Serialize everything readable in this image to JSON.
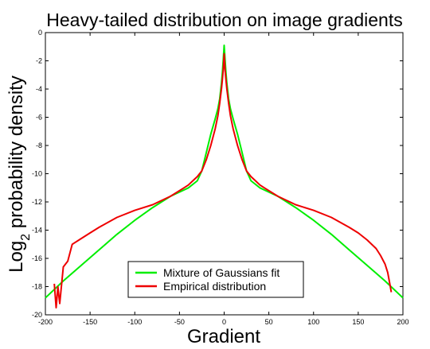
{
  "chart_data": {
    "type": "line",
    "title": "Heavy-tailed distribution on image gradients",
    "xlabel": "Gradient",
    "ylabel_main": "Log",
    "ylabel_sub": "2",
    "ylabel_rest": " probability density",
    "xlim": [
      -200,
      200
    ],
    "ylim": [
      -20,
      0
    ],
    "xticks": [
      -200,
      -150,
      -100,
      -50,
      0,
      50,
      100,
      150,
      200
    ],
    "yticks": [
      0,
      -2,
      -4,
      -6,
      -8,
      -10,
      -12,
      -14,
      -16,
      -18,
      -20
    ],
    "grid": false,
    "legend_position": "bottom-center",
    "series": [
      {
        "name": "Mixture of Gaussians fit",
        "color": "#00ee00",
        "x": [
          -200,
          -180,
          -160,
          -140,
          -120,
          -100,
          -80,
          -60,
          -50,
          -40,
          -30,
          -25,
          -20,
          -15,
          -10,
          -7,
          -5,
          -3,
          -2,
          -1,
          0,
          1,
          2,
          3,
          5,
          7,
          10,
          15,
          20,
          25,
          30,
          40,
          50,
          60,
          80,
          100,
          120,
          140,
          160,
          180,
          200
        ],
        "y": [
          -18.8,
          -17.6,
          -16.5,
          -15.4,
          -14.3,
          -13.3,
          -12.4,
          -11.6,
          -11.3,
          -11.0,
          -10.5,
          -9.8,
          -8.5,
          -7.2,
          -6.1,
          -5.4,
          -4.7,
          -3.6,
          -2.8,
          -1.9,
          -0.9,
          -1.9,
          -2.8,
          -3.6,
          -4.7,
          -5.4,
          -6.1,
          -7.2,
          -8.5,
          -9.8,
          -10.5,
          -11.0,
          -11.3,
          -11.6,
          -12.4,
          -13.3,
          -14.3,
          -15.4,
          -16.5,
          -17.6,
          -18.8
        ]
      },
      {
        "name": "Empirical distribution",
        "color": "#ee0000",
        "x": [
          -190,
          -188,
          -186,
          -184,
          -180,
          -175,
          -170,
          -160,
          -150,
          -140,
          -120,
          -100,
          -80,
          -60,
          -45,
          -40,
          -35,
          -30,
          -25,
          -20,
          -15,
          -10,
          -7,
          -5,
          -3,
          -2,
          -1,
          0,
          1,
          2,
          3,
          5,
          7,
          10,
          15,
          20,
          25,
          30,
          35,
          40,
          45,
          60,
          80,
          100,
          120,
          140,
          150,
          160,
          170,
          175,
          180,
          183,
          185,
          187
        ],
        "y": [
          -17.8,
          -19.5,
          -18.0,
          -19.2,
          -16.6,
          -16.2,
          -15.0,
          -14.6,
          -14.2,
          -13.8,
          -13.1,
          -12.6,
          -12.2,
          -11.6,
          -11.0,
          -10.8,
          -10.5,
          -10.2,
          -9.8,
          -9.0,
          -8.0,
          -6.8,
          -5.9,
          -5.0,
          -4.0,
          -3.3,
          -2.6,
          -1.5,
          -2.6,
          -3.3,
          -4.0,
          -5.0,
          -5.9,
          -6.8,
          -8.0,
          -9.0,
          -9.8,
          -10.2,
          -10.5,
          -10.8,
          -11.0,
          -11.6,
          -12.2,
          -12.6,
          -13.1,
          -13.8,
          -14.2,
          -14.7,
          -15.3,
          -15.8,
          -16.4,
          -17.0,
          -17.7,
          -18.4
        ]
      }
    ]
  }
}
